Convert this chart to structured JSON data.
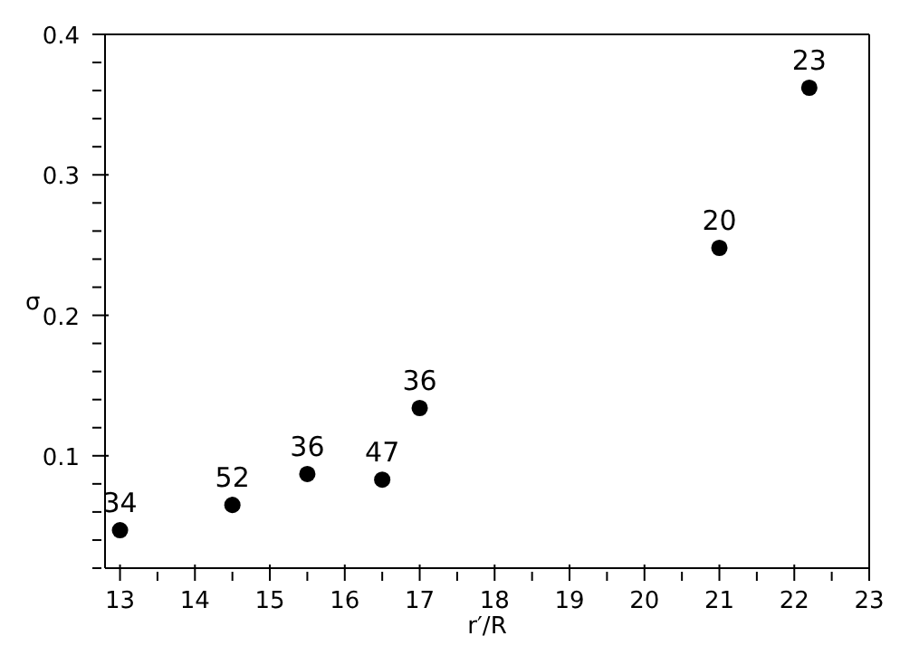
{
  "chart_data": {
    "type": "scatter",
    "xlabel": "r′/R",
    "ylabel": "σ",
    "x": [
      13.0,
      14.5,
      15.5,
      16.5,
      17.0,
      21.0,
      22.2
    ],
    "values": [
      0.047,
      0.065,
      0.087,
      0.083,
      0.134,
      0.248,
      0.362
    ],
    "annotations": [
      {
        "text": "34",
        "x": 13.0,
        "y": 0.047
      },
      {
        "text": "52",
        "x": 14.5,
        "y": 0.065
      },
      {
        "text": "36",
        "x": 15.5,
        "y": 0.087
      },
      {
        "text": "47",
        "x": 16.5,
        "y": 0.083
      },
      {
        "text": "36",
        "x": 17.0,
        "y": 0.134
      },
      {
        "text": "20",
        "x": 21.0,
        "y": 0.248
      },
      {
        "text": "23",
        "x": 22.2,
        "y": 0.362
      }
    ],
    "color": "#000000",
    "marker": "circle",
    "xlim": [
      12.8,
      23
    ],
    "xticks": [
      13,
      {
        "value": 13.5,
        "label": null
      },
      14,
      {
        "value": 14.5,
        "label": null
      },
      15,
      {
        "value": 15.5,
        "label": null
      },
      16,
      {
        "value": 16.5,
        "label": null
      },
      17,
      {
        "value": 17.5,
        "label": null
      },
      18,
      {
        "value": 18.5,
        "label": null
      },
      19,
      {
        "value": 19.5,
        "label": null
      },
      20,
      {
        "value": 20.5,
        "label": null
      },
      21,
      {
        "value": 21.5,
        "label": null
      },
      22,
      {
        "value": 22.5,
        "label": null
      },
      23
    ],
    "ylim": [
      0.02,
      0.4
    ],
    "yticks": [
      {
        "value": 0.02,
        "label": null
      },
      {
        "value": 0.04,
        "label": null
      },
      {
        "value": 0.06,
        "label": null
      },
      {
        "value": 0.08,
        "label": null
      },
      0.1,
      {
        "value": 0.12,
        "label": null
      },
      {
        "value": 0.14,
        "label": null
      },
      {
        "value": 0.16,
        "label": null
      },
      {
        "value": 0.18,
        "label": null
      },
      0.2,
      {
        "value": 0.22,
        "label": null
      },
      {
        "value": 0.24,
        "label": null
      },
      {
        "value": 0.26,
        "label": null
      },
      {
        "value": 0.28,
        "label": null
      },
      0.3,
      {
        "value": 0.32,
        "label": null
      },
      {
        "value": 0.34,
        "label": null
      },
      {
        "value": 0.36,
        "label": null
      },
      {
        "value": 0.38,
        "label": null
      },
      0.4
    ],
    "grid": false,
    "legend": false
  }
}
